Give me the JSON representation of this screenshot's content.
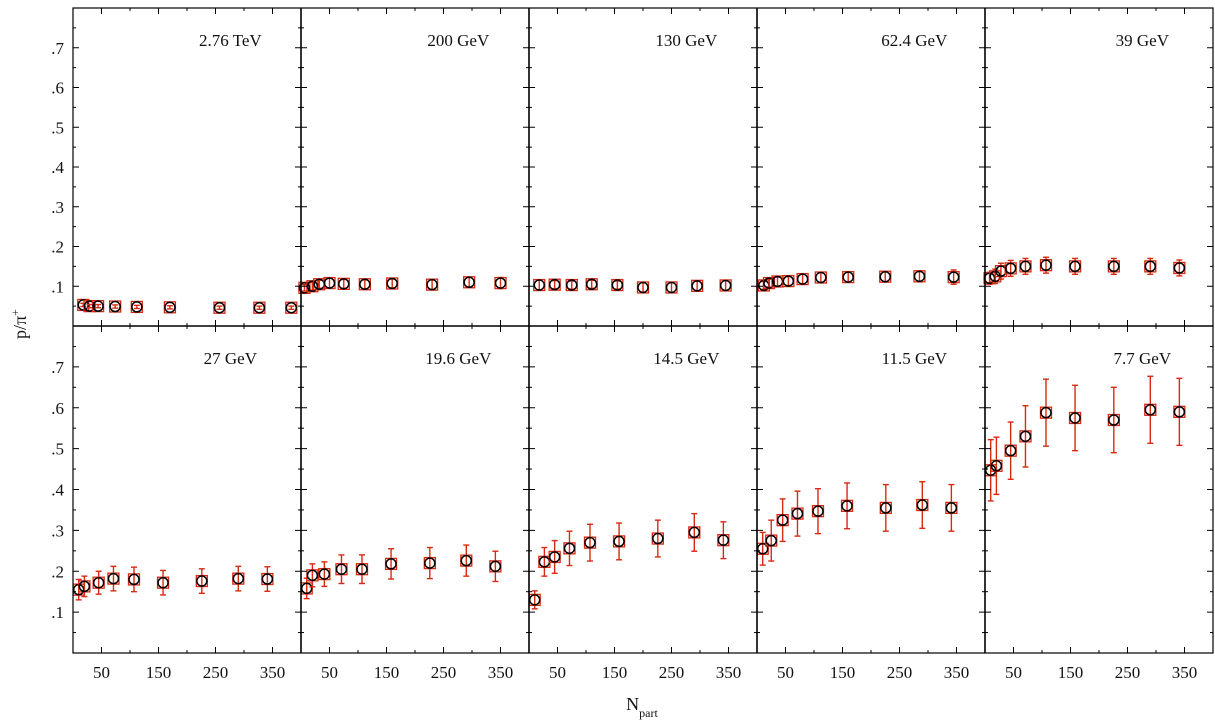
{
  "chart_data": {
    "type": "scatter",
    "xlabel": "N",
    "xlabel_sub": "part",
    "ylabel": "p/π",
    "ylabel_sup": "+",
    "ylim": [
      0,
      0.8
    ],
    "xlim": [
      0,
      400
    ],
    "y_ticks": [
      ".1",
      ".2",
      ".3",
      ".4",
      ".5",
      ".6",
      ".7"
    ],
    "y_tick_values": [
      0.1,
      0.2,
      0.3,
      0.4,
      0.5,
      0.6,
      0.7
    ],
    "x_ticks": [
      "50",
      "150",
      "250",
      "350"
    ],
    "x_tick_values": [
      50,
      150,
      250,
      350
    ],
    "colors": {
      "open_marker": "#000000",
      "square_marker": "#d62a12",
      "error_bar": "#d62a12",
      "frame": "#000000"
    },
    "panels": [
      {
        "label": "2.76 TeV",
        "x": [
          18,
          29,
          44,
          74,
          112,
          170,
          257,
          327,
          383
        ],
        "y": [
          0.053,
          0.05,
          0.05,
          0.049,
          0.048,
          0.047,
          0.046,
          0.046,
          0.046
        ],
        "err": [
          0.004,
          0.004,
          0.004,
          0.004,
          0.004,
          0.004,
          0.004,
          0.004,
          0.004
        ]
      },
      {
        "label": "200 GeV",
        "x": [
          6,
          20,
          32,
          50,
          75,
          112,
          160,
          230,
          295,
          350
        ],
        "y": [
          0.096,
          0.1,
          0.105,
          0.108,
          0.106,
          0.105,
          0.107,
          0.104,
          0.11,
          0.108
        ],
        "err": [
          0.008,
          0.01,
          0.01,
          0.012,
          0.011,
          0.011,
          0.011,
          0.012,
          0.013,
          0.014
        ]
      },
      {
        "label": "130 GeV",
        "x": [
          18,
          45,
          75,
          110,
          155,
          200,
          250,
          295,
          345
        ],
        "y": [
          0.103,
          0.104,
          0.103,
          0.105,
          0.103,
          0.097,
          0.097,
          0.101,
          0.102
        ],
        "err": [
          0.012,
          0.01,
          0.01,
          0.01,
          0.01,
          0.012,
          0.012,
          0.012,
          0.012
        ]
      },
      {
        "label": "62.4 GeV",
        "x": [
          12,
          21,
          36,
          55,
          80,
          112,
          160,
          225,
          285,
          345
        ],
        "y": [
          0.102,
          0.108,
          0.112,
          0.113,
          0.118,
          0.122,
          0.123,
          0.124,
          0.125,
          0.123
        ],
        "err": [
          0.01,
          0.01,
          0.011,
          0.011,
          0.012,
          0.012,
          0.013,
          0.013,
          0.014,
          0.018
        ]
      },
      {
        "label": "39 GeV",
        "x": [
          8,
          18,
          28,
          45,
          71,
          107,
          158,
          226,
          290,
          341
        ],
        "y": [
          0.12,
          0.125,
          0.138,
          0.145,
          0.15,
          0.153,
          0.15,
          0.15,
          0.15,
          0.146
        ],
        "err": [
          0.015,
          0.018,
          0.02,
          0.02,
          0.02,
          0.02,
          0.02,
          0.02,
          0.02,
          0.02
        ]
      },
      {
        "label": "27 GeV",
        "x": [
          10,
          20,
          45,
          71,
          107,
          158,
          226,
          290,
          341
        ],
        "y": [
          0.155,
          0.163,
          0.172,
          0.182,
          0.18,
          0.172,
          0.176,
          0.182,
          0.181
        ],
        "err": [
          0.025,
          0.025,
          0.028,
          0.03,
          0.03,
          0.03,
          0.03,
          0.03,
          0.03
        ]
      },
      {
        "label": "19.6 GeV",
        "x": [
          10,
          20,
          41,
          71,
          107,
          158,
          226,
          290,
          341
        ],
        "y": [
          0.158,
          0.19,
          0.193,
          0.205,
          0.205,
          0.218,
          0.22,
          0.226,
          0.212
        ],
        "err": [
          0.025,
          0.028,
          0.03,
          0.035,
          0.035,
          0.037,
          0.038,
          0.038,
          0.037
        ]
      },
      {
        "label": "14.5 GeV",
        "x": [
          10,
          27,
          45,
          71,
          107,
          158,
          226,
          290,
          341
        ],
        "y": [
          0.13,
          0.223,
          0.235,
          0.256,
          0.27,
          0.273,
          0.28,
          0.295,
          0.276
        ],
        "err": [
          0.022,
          0.035,
          0.04,
          0.042,
          0.045,
          0.045,
          0.045,
          0.046,
          0.045
        ]
      },
      {
        "label": "11.5 GeV",
        "x": [
          10,
          25,
          45,
          71,
          107,
          158,
          226,
          290,
          341
        ],
        "y": [
          0.255,
          0.275,
          0.325,
          0.341,
          0.347,
          0.36,
          0.355,
          0.362,
          0.355
        ],
        "err": [
          0.04,
          0.05,
          0.052,
          0.055,
          0.055,
          0.056,
          0.057,
          0.057,
          0.057
        ]
      },
      {
        "label": "7.7 GeV",
        "x": [
          10,
          20,
          45,
          71,
          107,
          158,
          226,
          290,
          341
        ],
        "y": [
          0.447,
          0.458,
          0.495,
          0.53,
          0.588,
          0.575,
          0.57,
          0.595,
          0.59
        ],
        "err": [
          0.075,
          0.07,
          0.07,
          0.075,
          0.082,
          0.08,
          0.08,
          0.082,
          0.082
        ]
      }
    ]
  }
}
